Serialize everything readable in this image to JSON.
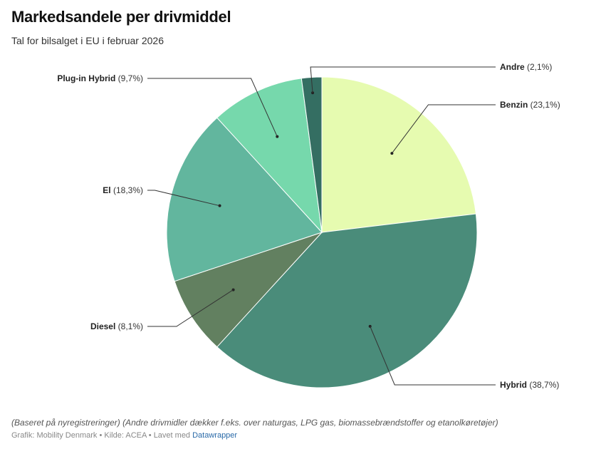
{
  "header": {
    "title": "Markedsandele per drivmiddel",
    "subtitle": "Tal for bilsalget i EU i februar 2026"
  },
  "footer": {
    "notes": "(Baseret på nyregistreringer) (Andre drivmidler dækker f.eks. over naturgas, LPG gas, biomassebrændstoffer og etanolkøretøjer)",
    "grafik_label": "Grafik: Mobility Denmark",
    "separator": " • ",
    "source_label": "Kilde: ACEA",
    "made_with_label": "Lavet med ",
    "made_with_link": "Datawrapper"
  },
  "chart_data": {
    "type": "pie",
    "title": "Markedsandele per drivmiddel",
    "subtitle": "Tal for bilsalget i EU i februar 2026",
    "unit": "%",
    "start_angle": "12 o'clock, clockwise",
    "slices": [
      {
        "label": "Benzin",
        "value": 23.1,
        "display": "(23,1%)",
        "color": "#e6fbb0",
        "label_side": "right"
      },
      {
        "label": "Hybrid",
        "value": 38.7,
        "display": "(38,7%)",
        "color": "#4a8c7a",
        "label_side": "right"
      },
      {
        "label": "Diesel",
        "value": 8.1,
        "display": "(8,1%)",
        "color": "#628060",
        "label_side": "left"
      },
      {
        "label": "El",
        "value": 18.3,
        "display": "(18,3%)",
        "color": "#62b69e",
        "label_side": "left"
      },
      {
        "label": "Plug-in Hybrid",
        "value": 9.7,
        "display": "(9,7%)",
        "color": "#76d8ac",
        "label_side": "left"
      },
      {
        "label": "Andre",
        "value": 2.1,
        "display": "(2,1%)",
        "color": "#346e62",
        "label_side": "right"
      }
    ]
  }
}
